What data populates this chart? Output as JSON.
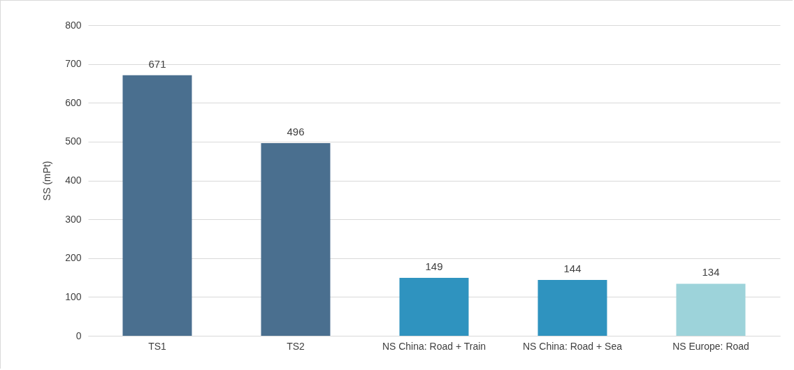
{
  "chart_data": {
    "type": "bar",
    "ylabel": "SS (mPt)",
    "categories": [
      "TS1",
      "TS2",
      "NS China: Road + Train",
      "NS China: Road + Sea",
      "NS Europe: Road"
    ],
    "values": [
      671,
      496,
      149,
      144,
      134
    ],
    "colors": [
      "#4a6f8f",
      "#4a6f8f",
      "#2f93bf",
      "#2f93bf",
      "#9dd3da"
    ],
    "ylim": [
      0,
      800
    ],
    "yticks": [
      0,
      100,
      200,
      300,
      400,
      500,
      600,
      700,
      800
    ],
    "grid": "y",
    "data_labels": true,
    "legend": false
  }
}
